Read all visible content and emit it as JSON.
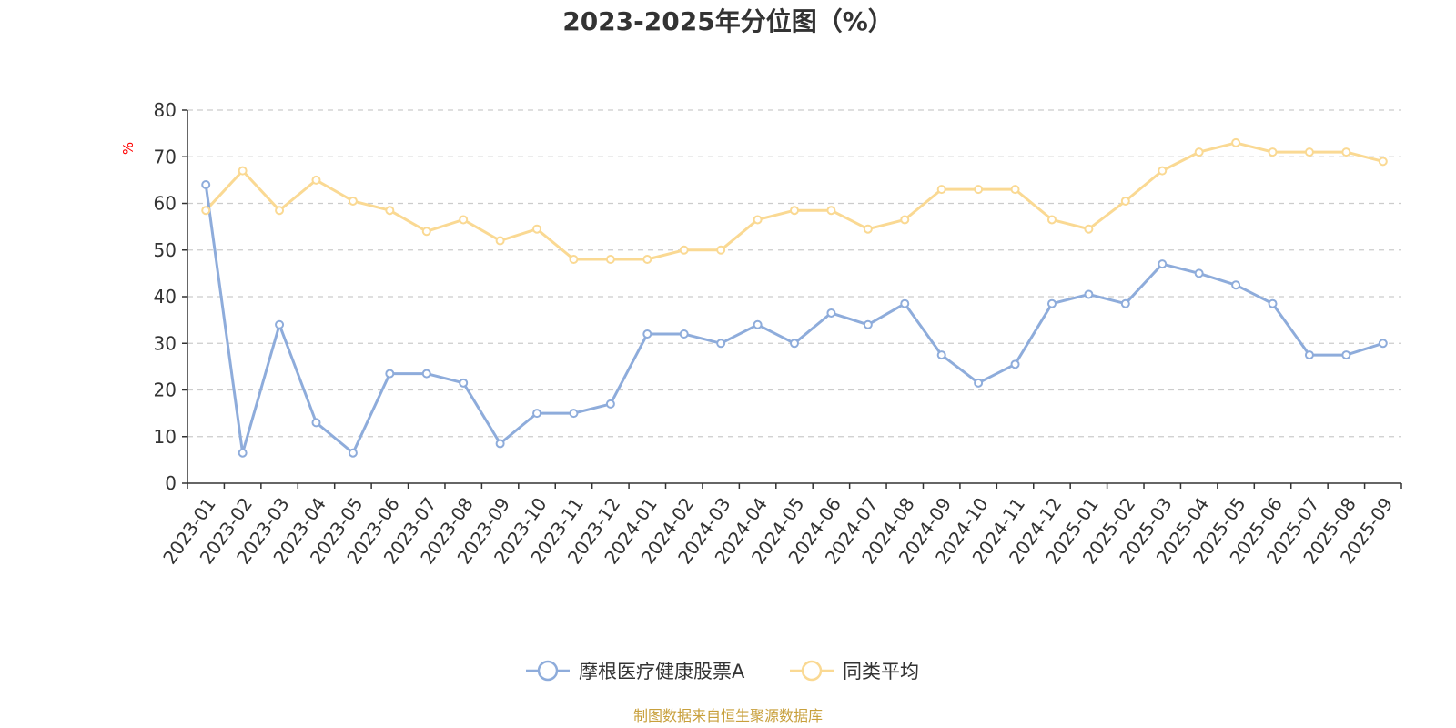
{
  "chart_data": {
    "type": "line",
    "title": "2023-2025年分位图（%）",
    "ylabel": "%",
    "ylim": [
      0,
      80
    ],
    "yticks": [
      0,
      10,
      20,
      30,
      40,
      50,
      60,
      70,
      80
    ],
    "grid": true,
    "legend_position": "bottom",
    "categories": [
      "2023-01",
      "2023-02",
      "2023-03",
      "2023-04",
      "2023-05",
      "2023-06",
      "2023-07",
      "2023-08",
      "2023-09",
      "2023-10",
      "2023-11",
      "2023-12",
      "2024-01",
      "2024-02",
      "2024-03",
      "2024-04",
      "2024-05",
      "2024-06",
      "2024-07",
      "2024-08",
      "2024-09",
      "2024-10",
      "2024-11",
      "2024-12",
      "2025-01",
      "2025-02",
      "2025-03",
      "2025-04",
      "2025-05",
      "2025-06",
      "2025-07",
      "2025-08",
      "2025-09"
    ],
    "series": [
      {
        "name": "摩根医疗健康股票A",
        "color": "#8eacdb",
        "values": [
          64,
          6.5,
          34,
          13,
          6.5,
          23.5,
          23.5,
          21.5,
          8.5,
          15,
          15,
          17,
          32,
          32,
          30,
          34,
          30,
          36.5,
          34,
          38.5,
          27.5,
          21.5,
          25.5,
          38.5,
          40.5,
          38.5,
          47,
          45,
          42.5,
          38.5,
          27.5,
          27.5,
          30
        ]
      },
      {
        "name": "同类平均",
        "color": "#fad993",
        "values": [
          58.5,
          67,
          58.5,
          65,
          60.5,
          58.5,
          54,
          56.5,
          52,
          54.5,
          48,
          48,
          48,
          50,
          50,
          56.5,
          58.5,
          58.5,
          54.5,
          56.5,
          63,
          63,
          63,
          56.5,
          54.5,
          60.5,
          67,
          71,
          73,
          71,
          71,
          71,
          69
        ]
      }
    ],
    "unit_color": "#ff0000",
    "source_text": "制图数据来自恒生聚源数据库",
    "source_color": "#c8a03c"
  }
}
